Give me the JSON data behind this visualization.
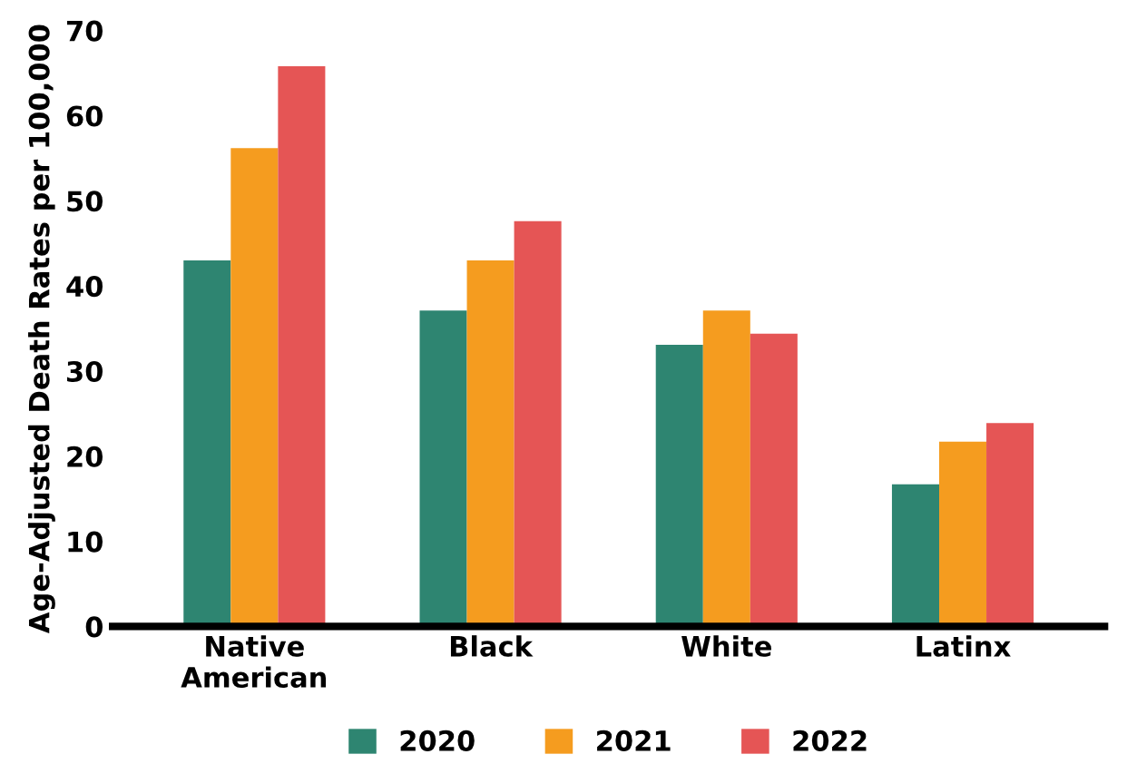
{
  "chart_data": {
    "type": "bar",
    "ylabel": "Age-Adjusted Death Rates per 100,000",
    "categories": [
      "Native\nAmerican",
      "Black",
      "White",
      "Latinx"
    ],
    "series": [
      {
        "name": "2020",
        "color": "#2e8571",
        "values": [
          43.0,
          37.1,
          33.1,
          16.7
        ]
      },
      {
        "name": "2021",
        "color": "#f59c1f",
        "values": [
          56.2,
          43.0,
          37.1,
          21.7
        ]
      },
      {
        "name": "2022",
        "color": "#e55555",
        "values": [
          65.8,
          47.6,
          34.4,
          23.9
        ]
      }
    ],
    "ylim": [
      0,
      70
    ],
    "yticks": [
      0,
      10,
      20,
      30,
      40,
      50,
      60,
      70
    ],
    "grid": false,
    "legend": "bottom"
  }
}
